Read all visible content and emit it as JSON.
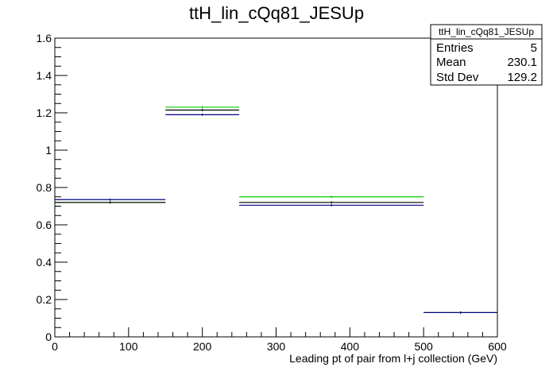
{
  "chart_data": {
    "type": "line",
    "title": "ttH_lin_cQq81_JESUp",
    "xlabel": "Leading pt of pair from l+j collection (GeV)",
    "ylabel": "",
    "xlim": [
      0,
      600
    ],
    "ylim": [
      0,
      1.6
    ],
    "bin_edges": [
      0,
      150,
      250,
      500,
      600
    ],
    "x_ticks": [
      0,
      100,
      200,
      300,
      400,
      500,
      600
    ],
    "y_ticks": [
      0,
      0.2,
      0.4,
      0.6,
      0.8,
      1,
      1.2,
      1.4,
      1.6
    ],
    "grid": false,
    "series": [
      {
        "color": "#00cc00",
        "values": [
          0.72,
          1.23,
          0.75,
          0.13
        ]
      },
      {
        "color": "#000000",
        "values": [
          0.72,
          1.215,
          0.72,
          0.13
        ]
      },
      {
        "color": "#000080",
        "values": [
          0.735,
          1.19,
          0.705,
          0.13
        ]
      }
    ],
    "stats": {
      "title": "ttH_lin_cQq81_JESUp",
      "rows": [
        {
          "label": "Entries",
          "value": "5"
        },
        {
          "label": "Mean",
          "value": "230.1"
        },
        {
          "label": "Std Dev",
          "value": "129.2"
        }
      ]
    }
  }
}
